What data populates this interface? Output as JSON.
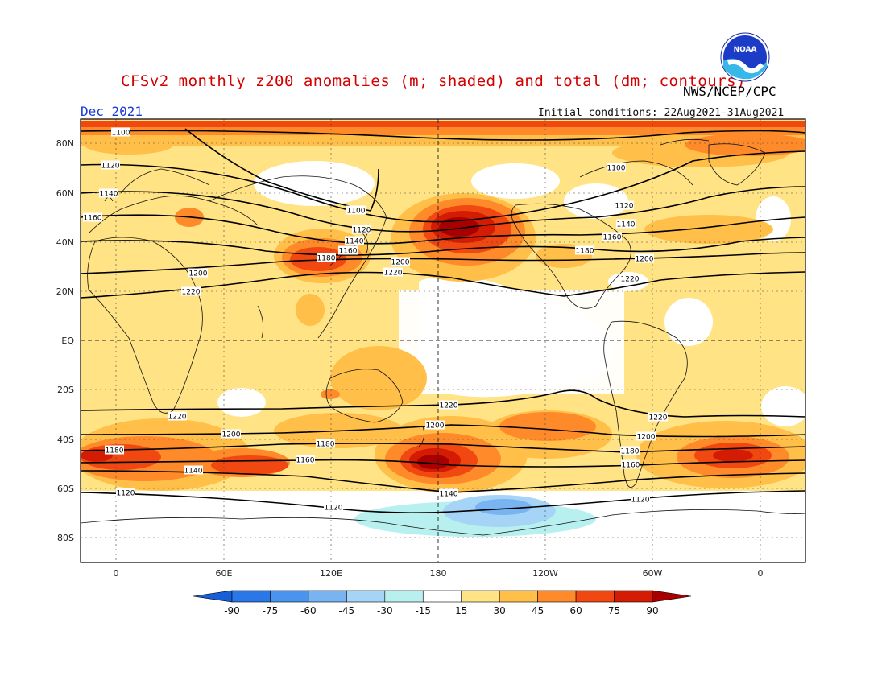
{
  "header": {
    "title": "CFSv2 monthly z200 anomalies (m; shaded) and total (dm; contours)",
    "org": "NWS/NCEP/CPC",
    "month": "Dec 2021",
    "initial_conditions": "Initial conditions: 22Aug2021-31Aug2021",
    "logo_text": "NOAA"
  },
  "axes": {
    "lat_labels": [
      "80N",
      "60N",
      "40N",
      "20N",
      "EQ",
      "20S",
      "40S",
      "60S",
      "80S"
    ],
    "lon_labels": [
      "0",
      "60E",
      "120E",
      "180",
      "120W",
      "60W",
      "0"
    ]
  },
  "legend": {
    "labels": [
      "-90",
      "-75",
      "-60",
      "-45",
      "-30",
      "-15",
      "15",
      "30",
      "45",
      "60",
      "75",
      "90"
    ],
    "colors": [
      "#1560d8",
      "#2a78e8",
      "#4a94ee",
      "#78b4f2",
      "#a6d4f6",
      "#b8f0f0",
      "#ffffff",
      "#ffe384",
      "#ffbf48",
      "#ff8a2a",
      "#f04810",
      "#d41c04",
      "#a80000"
    ]
  },
  "contours": {
    "north": [
      {
        "label": "1100",
        "pos": [
          [
            150,
            164
          ],
          [
            765,
            208
          ]
        ]
      },
      {
        "label": "1120",
        "pos": [
          [
            137,
            205
          ],
          [
            775,
            255
          ],
          [
            449,
            285
          ]
        ]
      },
      {
        "label": "1140",
        "pos": [
          [
            135,
            240
          ],
          [
            777,
            278
          ],
          [
            440,
            299
          ]
        ]
      },
      {
        "label": "1160",
        "pos": [
          [
            115,
            270
          ],
          [
            760,
            294
          ],
          [
            432,
            311
          ]
        ]
      },
      {
        "label": "1180",
        "pos": [
          [
            405,
            320
          ],
          [
            726,
            311
          ]
        ]
      },
      {
        "label": "1200",
        "pos": [
          [
            246,
            339
          ],
          [
            497,
            325
          ],
          [
            800,
            321
          ]
        ]
      },
      {
        "label": "1220",
        "pos": [
          [
            237,
            362
          ],
          [
            488,
            338
          ],
          [
            782,
            346
          ]
        ]
      },
      {
        "label": "1100",
        "pos": [
          [
            442,
            261
          ]
        ]
      }
    ],
    "south": [
      {
        "label": "1220",
        "pos": [
          [
            220,
            517
          ],
          [
            557,
            503
          ],
          [
            817,
            518
          ]
        ]
      },
      {
        "label": "1200",
        "pos": [
          [
            287,
            539
          ],
          [
            540,
            528
          ],
          [
            802,
            542
          ]
        ]
      },
      {
        "label": "1180",
        "pos": [
          [
            142,
            559
          ],
          [
            404,
            551
          ],
          [
            782,
            560
          ]
        ]
      },
      {
        "label": "1160",
        "pos": [
          [
            379,
            571
          ],
          [
            783,
            577
          ]
        ]
      },
      {
        "label": "1140",
        "pos": [
          [
            240,
            584
          ],
          [
            557,
            613
          ]
        ]
      },
      {
        "label": "1120",
        "pos": [
          [
            156,
            612
          ],
          [
            414,
            630
          ],
          [
            795,
            620
          ]
        ]
      }
    ]
  }
}
